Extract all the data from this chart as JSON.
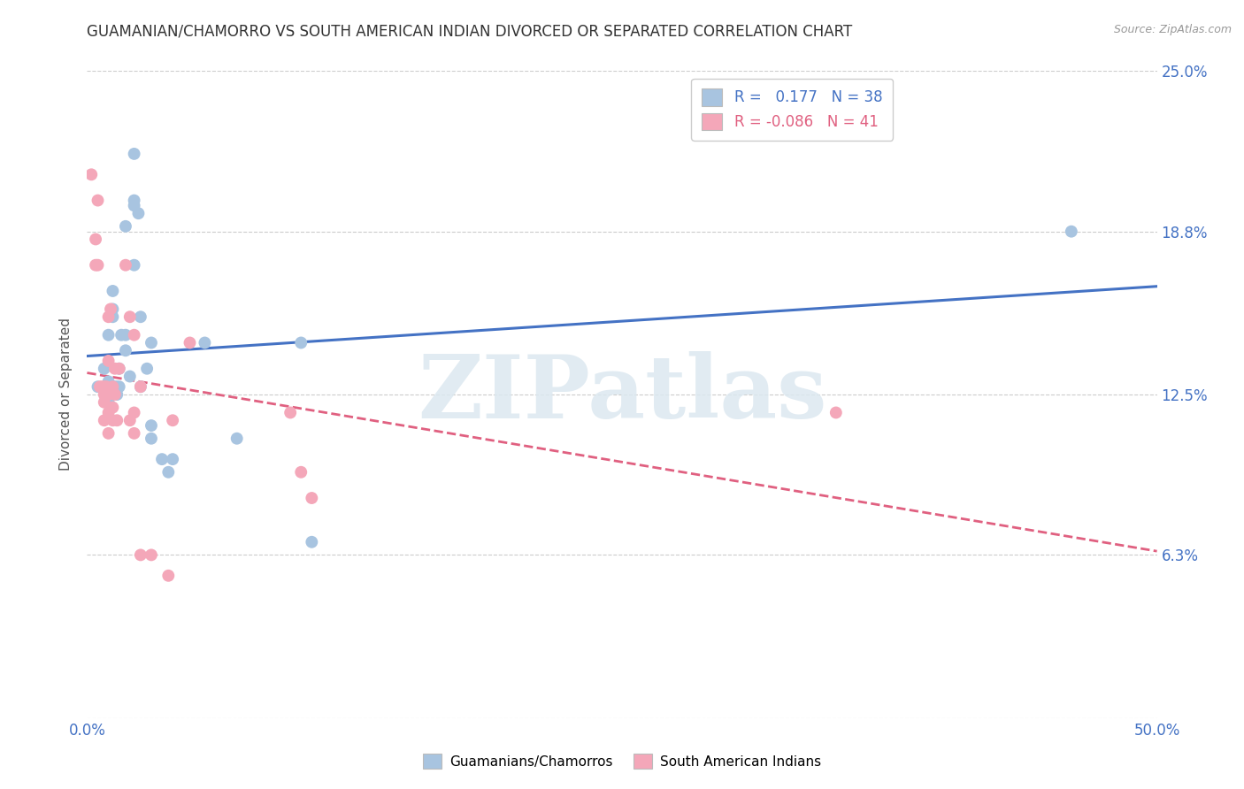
{
  "title": "GUAMANIAN/CHAMORRO VS SOUTH AMERICAN INDIAN DIVORCED OR SEPARATED CORRELATION CHART",
  "source": "Source: ZipAtlas.com",
  "ylabel": "Divorced or Separated",
  "xmin": 0.0,
  "xmax": 0.5,
  "ymin": 0.0,
  "ymax": 0.25,
  "ytick_positions": [
    0.0,
    0.063,
    0.125,
    0.188,
    0.25
  ],
  "ytick_labels": [
    "",
    "6.3%",
    "12.5%",
    "18.8%",
    "25.0%"
  ],
  "xtick_positions": [
    0.0,
    0.5
  ],
  "xtick_labels": [
    "0.0%",
    "50.0%"
  ],
  "blue_color": "#a8c4e0",
  "pink_color": "#f4a7b9",
  "line_blue": "#4472c4",
  "line_pink": "#e06080",
  "watermark_text": "ZIPatlas",
  "legend_label1": "R =   0.177   N = 38",
  "legend_label2": "R = -0.086   N = 41",
  "bottom_label1": "Guamanians/Chamorros",
  "bottom_label2": "South American Indians",
  "blue_scatter": [
    [
      0.005,
      0.128
    ],
    [
      0.008,
      0.135
    ],
    [
      0.01,
      0.148
    ],
    [
      0.01,
      0.13
    ],
    [
      0.01,
      0.122
    ],
    [
      0.012,
      0.165
    ],
    [
      0.012,
      0.158
    ],
    [
      0.012,
      0.155
    ],
    [
      0.012,
      0.128
    ],
    [
      0.013,
      0.128
    ],
    [
      0.014,
      0.128
    ],
    [
      0.014,
      0.125
    ],
    [
      0.015,
      0.135
    ],
    [
      0.015,
      0.128
    ],
    [
      0.016,
      0.148
    ],
    [
      0.018,
      0.19
    ],
    [
      0.018,
      0.148
    ],
    [
      0.018,
      0.142
    ],
    [
      0.02,
      0.132
    ],
    [
      0.022,
      0.218
    ],
    [
      0.022,
      0.2
    ],
    [
      0.022,
      0.198
    ],
    [
      0.022,
      0.175
    ],
    [
      0.024,
      0.195
    ],
    [
      0.025,
      0.155
    ],
    [
      0.025,
      0.128
    ],
    [
      0.028,
      0.135
    ],
    [
      0.03,
      0.145
    ],
    [
      0.03,
      0.113
    ],
    [
      0.03,
      0.108
    ],
    [
      0.035,
      0.1
    ],
    [
      0.038,
      0.095
    ],
    [
      0.04,
      0.1
    ],
    [
      0.055,
      0.145
    ],
    [
      0.07,
      0.108
    ],
    [
      0.1,
      0.145
    ],
    [
      0.105,
      0.068
    ],
    [
      0.46,
      0.188
    ]
  ],
  "pink_scatter": [
    [
      0.002,
      0.21
    ],
    [
      0.004,
      0.185
    ],
    [
      0.004,
      0.175
    ],
    [
      0.005,
      0.2
    ],
    [
      0.005,
      0.175
    ],
    [
      0.006,
      0.128
    ],
    [
      0.007,
      0.128
    ],
    [
      0.008,
      0.128
    ],
    [
      0.008,
      0.125
    ],
    [
      0.008,
      0.122
    ],
    [
      0.008,
      0.115
    ],
    [
      0.009,
      0.128
    ],
    [
      0.01,
      0.155
    ],
    [
      0.01,
      0.138
    ],
    [
      0.01,
      0.125
    ],
    [
      0.01,
      0.118
    ],
    [
      0.01,
      0.11
    ],
    [
      0.011,
      0.158
    ],
    [
      0.012,
      0.128
    ],
    [
      0.012,
      0.12
    ],
    [
      0.012,
      0.115
    ],
    [
      0.013,
      0.135
    ],
    [
      0.013,
      0.125
    ],
    [
      0.014,
      0.115
    ],
    [
      0.015,
      0.135
    ],
    [
      0.018,
      0.175
    ],
    [
      0.02,
      0.155
    ],
    [
      0.02,
      0.115
    ],
    [
      0.022,
      0.148
    ],
    [
      0.022,
      0.118
    ],
    [
      0.022,
      0.11
    ],
    [
      0.025,
      0.128
    ],
    [
      0.025,
      0.063
    ],
    [
      0.03,
      0.063
    ],
    [
      0.038,
      0.055
    ],
    [
      0.04,
      0.115
    ],
    [
      0.048,
      0.145
    ],
    [
      0.095,
      0.118
    ],
    [
      0.1,
      0.095
    ],
    [
      0.105,
      0.085
    ],
    [
      0.35,
      0.118
    ]
  ]
}
